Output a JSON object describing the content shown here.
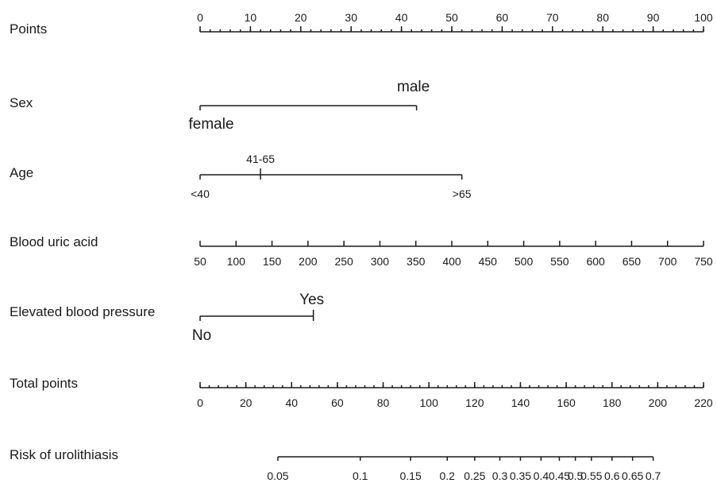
{
  "chart_data": {
    "type": "nomogram",
    "title": "",
    "rows": [
      {
        "label": "Points",
        "kind": "scale",
        "min": 0,
        "max": 100,
        "major_ticks": [
          0,
          10,
          20,
          30,
          40,
          50,
          60,
          70,
          80,
          90,
          100
        ],
        "minor_step": 2,
        "tick_labels": [
          "0",
          "10",
          "20",
          "30",
          "40",
          "50",
          "60",
          "70",
          "80",
          "90",
          "100"
        ]
      },
      {
        "label": "Sex",
        "kind": "categorical",
        "levels": [
          {
            "name": "female",
            "points": 0
          },
          {
            "name": "male",
            "points": 43
          }
        ]
      },
      {
        "label": "Age",
        "kind": "categorical",
        "levels": [
          {
            "name": "<40",
            "points": 0
          },
          {
            "name": "41-65",
            "points": 12
          },
          {
            "name": ">65",
            "points": 52
          }
        ]
      },
      {
        "label": "Blood uric acid",
        "kind": "scale",
        "min": 50,
        "max": 750,
        "major_ticks": [
          50,
          100,
          150,
          200,
          250,
          300,
          350,
          400,
          450,
          500,
          550,
          600,
          650,
          700,
          750
        ],
        "tick_labels": [
          "50",
          "100",
          "150",
          "200",
          "250",
          "300",
          "350",
          "400",
          "450",
          "500",
          "550",
          "600",
          "650",
          "700",
          "750"
        ]
      },
      {
        "label": "Elevated blood pressure",
        "kind": "categorical",
        "levels": [
          {
            "name": "No",
            "points": 0
          },
          {
            "name": "Yes",
            "points": 22.5
          }
        ]
      },
      {
        "label": "Total points",
        "kind": "scale",
        "min": 0,
        "max": 220,
        "major_ticks": [
          0,
          20,
          40,
          60,
          80,
          100,
          120,
          140,
          160,
          180,
          200,
          220
        ],
        "minor_step": 4,
        "tick_labels": [
          "0",
          "20",
          "40",
          "60",
          "80",
          "100",
          "120",
          "140",
          "160",
          "180",
          "200",
          "220"
        ]
      },
      {
        "label": "Risk of urolithiasis",
        "kind": "risk",
        "probabilities": [
          0.05,
          0.1,
          0.15,
          0.2,
          0.25,
          0.3,
          0.35,
          0.4,
          0.45,
          0.5,
          0.55,
          0.6,
          0.65,
          0.7
        ],
        "total_points": [
          34,
          70,
          92,
          108,
          120,
          131,
          140,
          149,
          157,
          164,
          171,
          180,
          189,
          198
        ],
        "tick_labels": [
          "0.05",
          "0.1",
          "0.15",
          "0.2",
          "0.25",
          "0.3",
          "0.35",
          "0.4",
          "0.45",
          "0.5",
          "0.55",
          "0.6",
          "0.65",
          "0.7"
        ]
      }
    ]
  }
}
